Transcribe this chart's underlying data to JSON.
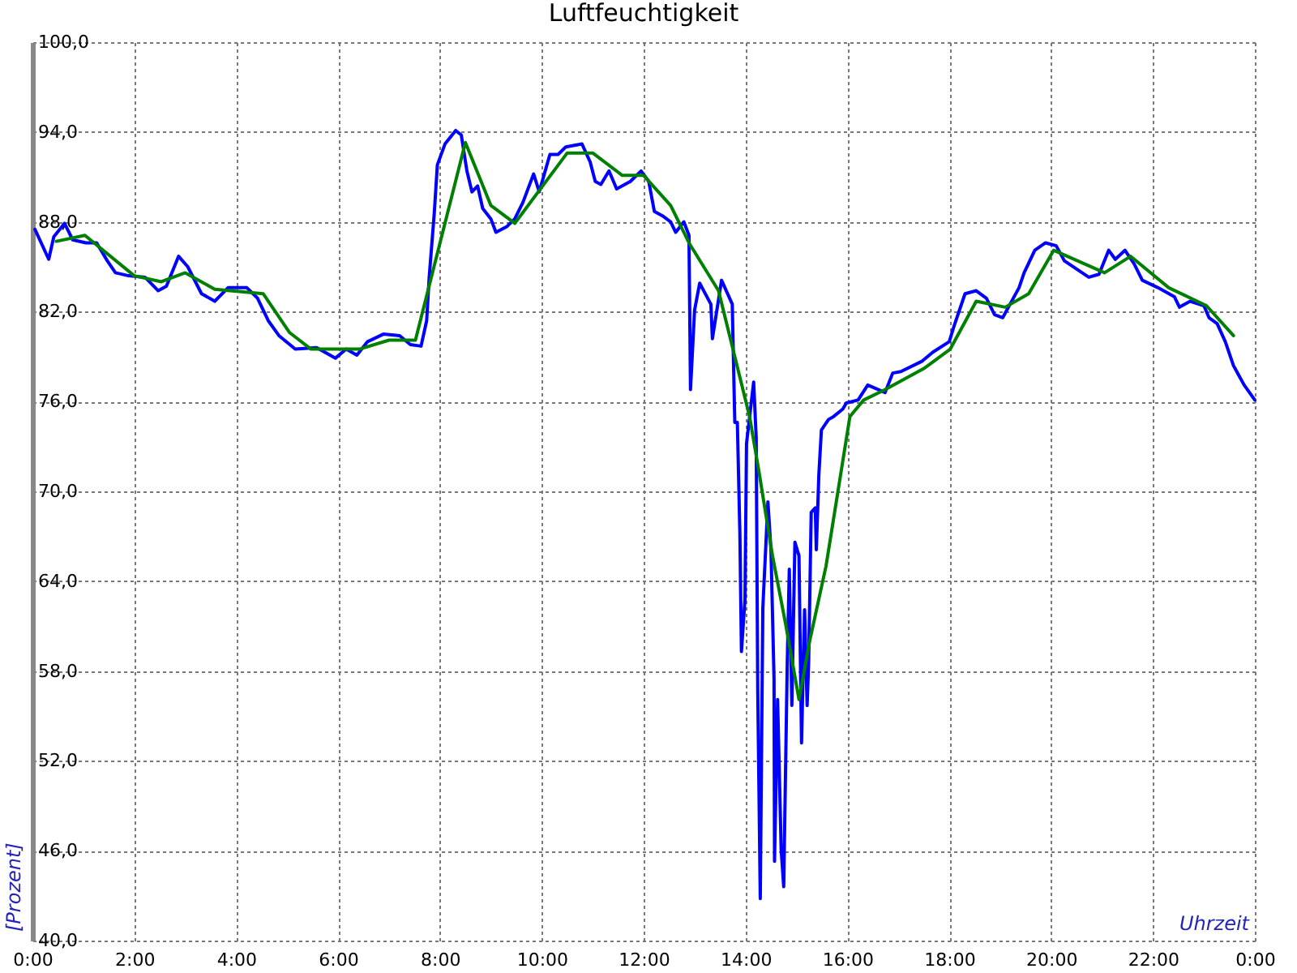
{
  "chart_data": {
    "type": "line",
    "title": "Luftfeuchtigkeit",
    "xlabel": "Uhrzeit",
    "ylabel": "[Prozent]",
    "xlim": [
      0,
      24
    ],
    "ylim": [
      40,
      100
    ],
    "xticks": [
      {
        "value": 0,
        "label": "0:00"
      },
      {
        "value": 2,
        "label": "2:00"
      },
      {
        "value": 4,
        "label": "4:00"
      },
      {
        "value": 6,
        "label": "6:00"
      },
      {
        "value": 8,
        "label": "8:00"
      },
      {
        "value": 10,
        "label": "10:00"
      },
      {
        "value": 12,
        "label": "12:00"
      },
      {
        "value": 14,
        "label": "14:00"
      },
      {
        "value": 16,
        "label": "16:00"
      },
      {
        "value": 18,
        "label": "18:00"
      },
      {
        "value": 20,
        "label": "20:00"
      },
      {
        "value": 22,
        "label": "22:00"
      },
      {
        "value": 24,
        "label": "0:00"
      }
    ],
    "yticks": [
      {
        "value": 40,
        "label": "40,0"
      },
      {
        "value": 46,
        "label": "46,0"
      },
      {
        "value": 52,
        "label": "52,0"
      },
      {
        "value": 58,
        "label": "58,0"
      },
      {
        "value": 64,
        "label": "64,0"
      },
      {
        "value": 70,
        "label": "70,0"
      },
      {
        "value": 76,
        "label": "76,0"
      },
      {
        "value": 82,
        "label": "82,0"
      },
      {
        "value": 88,
        "label": "88,0"
      },
      {
        "value": 94,
        "label": "94,0"
      },
      {
        "value": 100,
        "label": "100,0"
      }
    ],
    "grid": true,
    "line_style": "solid",
    "marker": "none",
    "series": [
      {
        "color": "#0000ff",
        "x": [
          0.05,
          0.32,
          0.42,
          0.63,
          0.79,
          1.05,
          1.26,
          1.47,
          1.63,
          1.89,
          2.21,
          2.47,
          2.63,
          2.87,
          3.05,
          3.32,
          3.58,
          3.84,
          4.21,
          4.42,
          4.63,
          4.84,
          5.16,
          5.58,
          5.95,
          6.16,
          6.37,
          6.58,
          6.89,
          7.21,
          7.42,
          7.63,
          7.74,
          7.79,
          7.89,
          7.95,
          8.1,
          8.31,
          8.42,
          8.53,
          8.63,
          8.74,
          8.84,
          9.0,
          9.1,
          9.32,
          9.47,
          9.63,
          9.84,
          9.95,
          10.16,
          10.32,
          10.47,
          10.79,
          10.95,
          11.05,
          11.16,
          11.32,
          11.47,
          11.74,
          11.95,
          12.1,
          12.21,
          12.37,
          12.53,
          12.63,
          12.79,
          12.89,
          12.92,
          13.0,
          13.1,
          13.32,
          13.35,
          13.53,
          13.74,
          13.79,
          13.84,
          13.89,
          13.92,
          13.99,
          14.02,
          14.16,
          14.21,
          14.24,
          14.29,
          14.34,
          14.44,
          14.5,
          14.56,
          14.57,
          14.63,
          14.7,
          14.75,
          14.82,
          14.86,
          14.91,
          14.97,
          15.05,
          15.1,
          15.16,
          15.21,
          15.24,
          15.29,
          15.37,
          15.39,
          15.44,
          15.49,
          15.63,
          15.73,
          15.91,
          15.98,
          16.21,
          16.4,
          16.74,
          16.89,
          17.05,
          17.47,
          17.68,
          18.0,
          18.1,
          18.31,
          18.53,
          18.73,
          18.89,
          19.05,
          19.37,
          19.47,
          19.68,
          19.89,
          20.1,
          20.26,
          20.52,
          20.74,
          20.94,
          21.13,
          21.26,
          21.45,
          21.63,
          21.79,
          22.1,
          22.42,
          22.52,
          22.73,
          23.0,
          23.1,
          23.26,
          23.42,
          23.58,
          23.79,
          24.0
        ],
        "values": [
          87.5,
          85.5,
          87.0,
          87.9,
          86.8,
          86.6,
          86.6,
          85.4,
          84.6,
          84.4,
          84.3,
          83.4,
          83.7,
          85.7,
          85.0,
          83.2,
          82.7,
          83.6,
          83.6,
          82.9,
          81.4,
          80.4,
          79.5,
          79.6,
          78.9,
          79.5,
          79.1,
          80.0,
          80.5,
          80.4,
          79.8,
          79.7,
          81.4,
          84.3,
          88.6,
          91.8,
          93.2,
          94.1,
          93.8,
          91.4,
          90.0,
          90.4,
          88.9,
          88.2,
          87.3,
          87.7,
          88.2,
          89.3,
          91.2,
          90.0,
          92.5,
          92.5,
          93.0,
          93.2,
          92.0,
          90.7,
          90.5,
          91.4,
          90.2,
          90.7,
          91.4,
          90.7,
          88.7,
          88.4,
          88.0,
          87.3,
          88.0,
          87.1,
          76.8,
          82.1,
          83.9,
          82.5,
          80.2,
          84.1,
          82.5,
          74.6,
          74.6,
          67.1,
          59.3,
          62.8,
          73.2,
          77.3,
          73.6,
          56.8,
          42.8,
          62.2,
          69.3,
          66.1,
          57.5,
          45.3,
          56.1,
          46.1,
          43.6,
          58.6,
          64.8,
          55.7,
          66.6,
          65.7,
          53.2,
          62.1,
          55.7,
          58.6,
          68.6,
          68.9,
          66.1,
          71.1,
          74.1,
          74.8,
          75.0,
          75.5,
          75.9,
          76.1,
          77.1,
          76.6,
          77.9,
          78.0,
          78.7,
          79.3,
          80.0,
          81.1,
          83.2,
          83.4,
          82.9,
          81.8,
          81.6,
          83.6,
          84.6,
          86.1,
          86.6,
          86.4,
          85.4,
          84.8,
          84.3,
          84.5,
          86.1,
          85.5,
          86.1,
          85.2,
          84.1,
          83.6,
          83.0,
          82.3,
          82.7,
          82.4,
          81.6,
          81.2,
          80.0,
          78.4,
          77.1,
          76.1
        ]
      },
      {
        "color": "#008000",
        "x": [
          0.47,
          1.03,
          2.0,
          2.53,
          3.0,
          3.58,
          4.53,
          5.05,
          5.47,
          6.42,
          7.0,
          7.52,
          8.5,
          9.0,
          9.47,
          10.5,
          11.0,
          11.58,
          12.0,
          12.53,
          12.89,
          13.47,
          14.08,
          14.26,
          14.53,
          14.79,
          15.05,
          15.26,
          15.58,
          16.05,
          16.32,
          16.74,
          17.5,
          18.02,
          18.53,
          19.1,
          19.56,
          20.05,
          21.05,
          21.56,
          22.31,
          23.05,
          23.58
        ],
        "values": [
          86.7,
          87.1,
          84.4,
          84.0,
          84.6,
          83.5,
          83.2,
          80.6,
          79.5,
          79.5,
          80.1,
          80.1,
          93.3,
          89.1,
          87.9,
          92.6,
          92.6,
          91.1,
          91.1,
          89.1,
          86.6,
          83.4,
          75.0,
          71.4,
          65.7,
          61.1,
          56.1,
          60.0,
          65.0,
          75.0,
          76.1,
          76.8,
          78.2,
          79.5,
          82.7,
          82.3,
          83.2,
          86.1,
          84.6,
          85.7,
          83.6,
          82.4,
          80.4
        ]
      }
    ]
  }
}
